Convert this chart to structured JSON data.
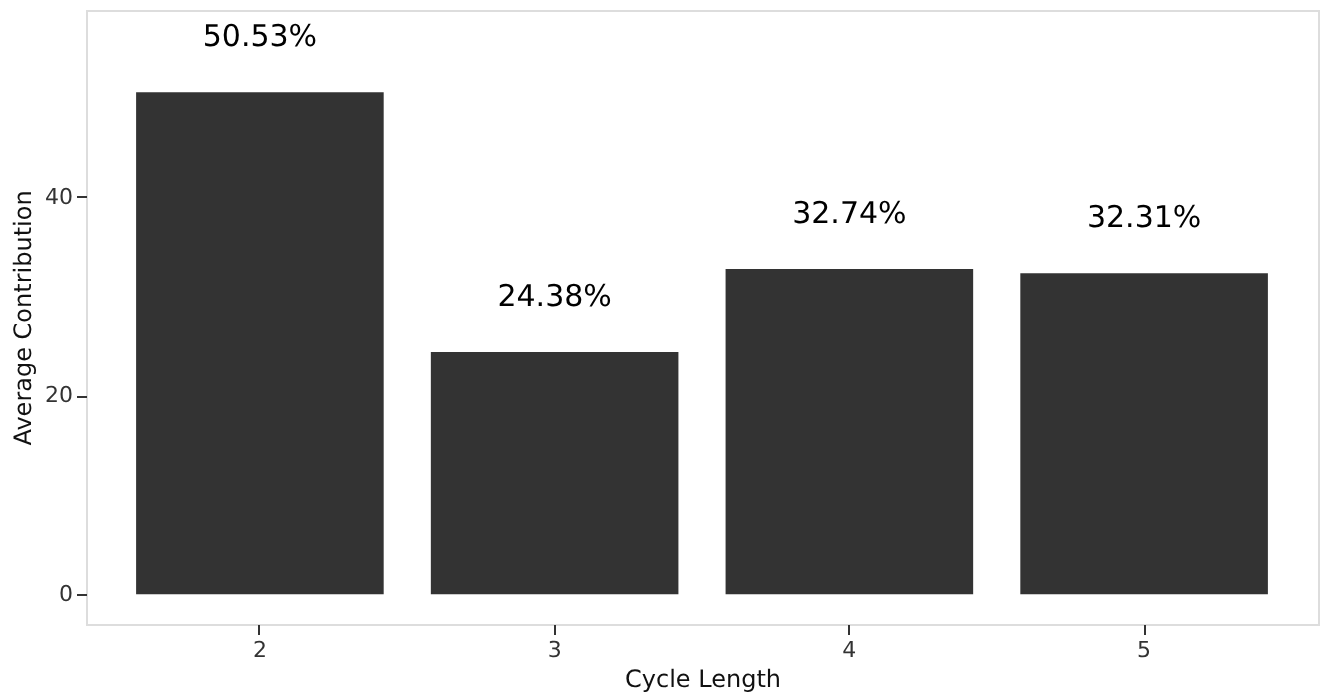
{
  "chart_data": {
    "type": "bar",
    "xlabel": "Cycle Length",
    "ylabel": "Average Contribution",
    "categories": [
      "2",
      "3",
      "4",
      "5"
    ],
    "values": [
      50.53,
      24.38,
      32.74,
      32.31
    ],
    "value_labels": [
      "50.53%",
      "24.38%",
      "32.74%",
      "32.31%"
    ],
    "color": "#333333",
    "ylim": [
      -3,
      58.8
    ],
    "yticks": [
      0,
      20,
      40
    ],
    "grid": false
  }
}
